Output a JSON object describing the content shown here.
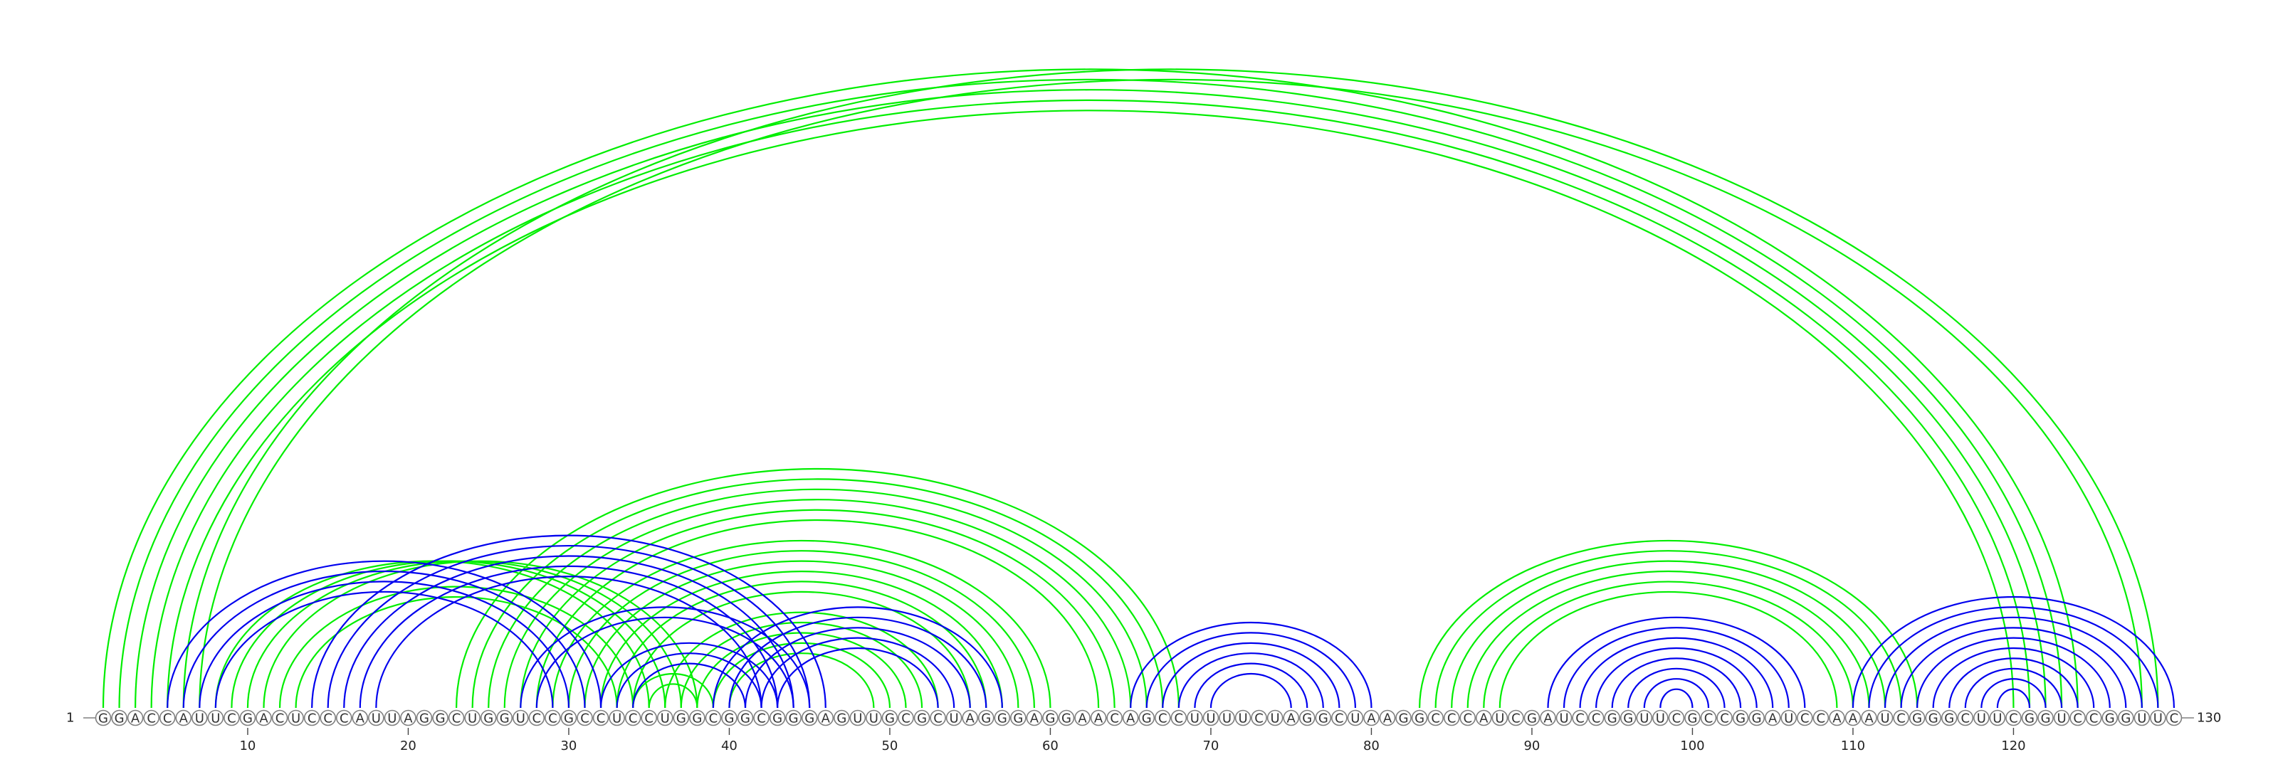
{
  "sequence": "GGACCAUUCGACUCCCAUUAGGCUGGUCCGCCUCCUGGCGGCGGGAGUUGCGCUAGGGAGGAACAGCCUUUUCUAGGCUAAGGCCCAUCGAUCCGGUUCGCCGGAUCCAAAUCGGGCUUCGGUCCGGUUC",
  "start_label": "1",
  "end_label": "130",
  "ticks": [
    10,
    20,
    30,
    40,
    50,
    60,
    70,
    80,
    90,
    100,
    110,
    120
  ],
  "colors": {
    "green": "#00ee00",
    "blue": "#0000ee",
    "backbone": "#808080"
  },
  "pairs": {
    "green": [
      [
        1,
        124
      ],
      [
        2,
        123
      ],
      [
        3,
        122
      ],
      [
        4,
        121
      ],
      [
        5,
        120
      ],
      [
        6,
        129
      ],
      [
        7,
        128
      ],
      [
        12,
        34
      ],
      [
        13,
        33
      ],
      [
        8,
        35
      ],
      [
        9,
        36
      ],
      [
        10,
        37
      ],
      [
        11,
        38
      ],
      [
        30,
        59
      ],
      [
        31,
        58
      ],
      [
        32,
        57
      ],
      [
        33,
        56
      ],
      [
        34,
        55
      ],
      [
        29,
        60
      ],
      [
        23,
        68
      ],
      [
        24,
        67
      ],
      [
        25,
        66
      ],
      [
        26,
        65
      ],
      [
        27,
        64
      ],
      [
        28,
        63
      ],
      [
        36,
        53
      ],
      [
        37,
        52
      ],
      [
        38,
        51
      ],
      [
        39,
        50
      ],
      [
        40,
        49
      ],
      [
        35,
        38
      ],
      [
        34,
        39
      ],
      [
        83,
        114
      ],
      [
        84,
        113
      ],
      [
        85,
        112
      ],
      [
        86,
        111
      ],
      [
        87,
        110
      ],
      [
        88,
        109
      ]
    ],
    "blue": [
      [
        5,
        32
      ],
      [
        6,
        31
      ],
      [
        7,
        30
      ],
      [
        8,
        29
      ],
      [
        14,
        46
      ],
      [
        15,
        45
      ],
      [
        16,
        44
      ],
      [
        17,
        43
      ],
      [
        18,
        42
      ],
      [
        27,
        45
      ],
      [
        28,
        44
      ],
      [
        34,
        41
      ],
      [
        33,
        42
      ],
      [
        32,
        43
      ],
      [
        39,
        57
      ],
      [
        40,
        56
      ],
      [
        41,
        55
      ],
      [
        42,
        54
      ],
      [
        43,
        53
      ],
      [
        65,
        80
      ],
      [
        66,
        79
      ],
      [
        67,
        78
      ],
      [
        68,
        77
      ],
      [
        69,
        76
      ],
      [
        70,
        75
      ],
      [
        91,
        107
      ],
      [
        92,
        106
      ],
      [
        93,
        105
      ],
      [
        94,
        104
      ],
      [
        95,
        103
      ],
      [
        96,
        102
      ],
      [
        97,
        101
      ],
      [
        98,
        100
      ],
      [
        110,
        130
      ],
      [
        111,
        129
      ],
      [
        112,
        128
      ],
      [
        113,
        127
      ],
      [
        114,
        126
      ],
      [
        115,
        125
      ],
      [
        116,
        124
      ],
      [
        117,
        123
      ],
      [
        118,
        122
      ],
      [
        119,
        121
      ]
    ]
  }
}
